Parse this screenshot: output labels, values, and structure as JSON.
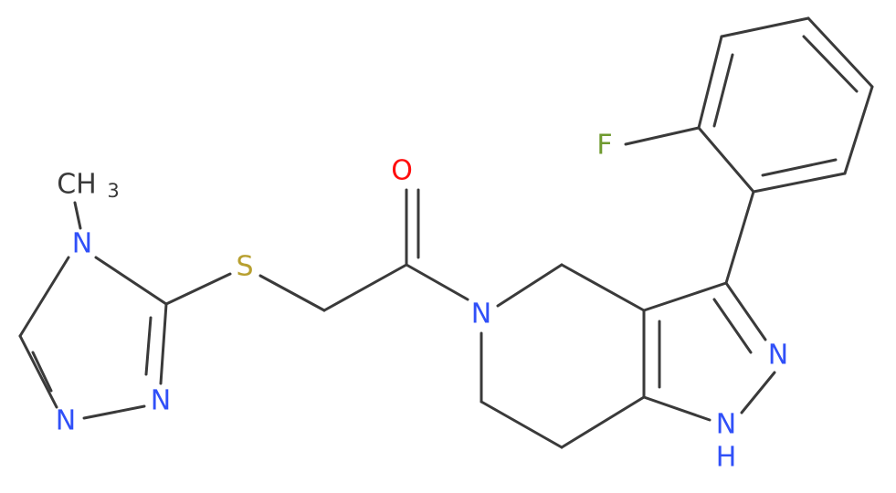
{
  "labels": [
    "F",
    "O",
    "CH",
    "3",
    "N",
    "S",
    "N",
    "N",
    "N",
    "N",
    "N",
    "H"
  ]
}
